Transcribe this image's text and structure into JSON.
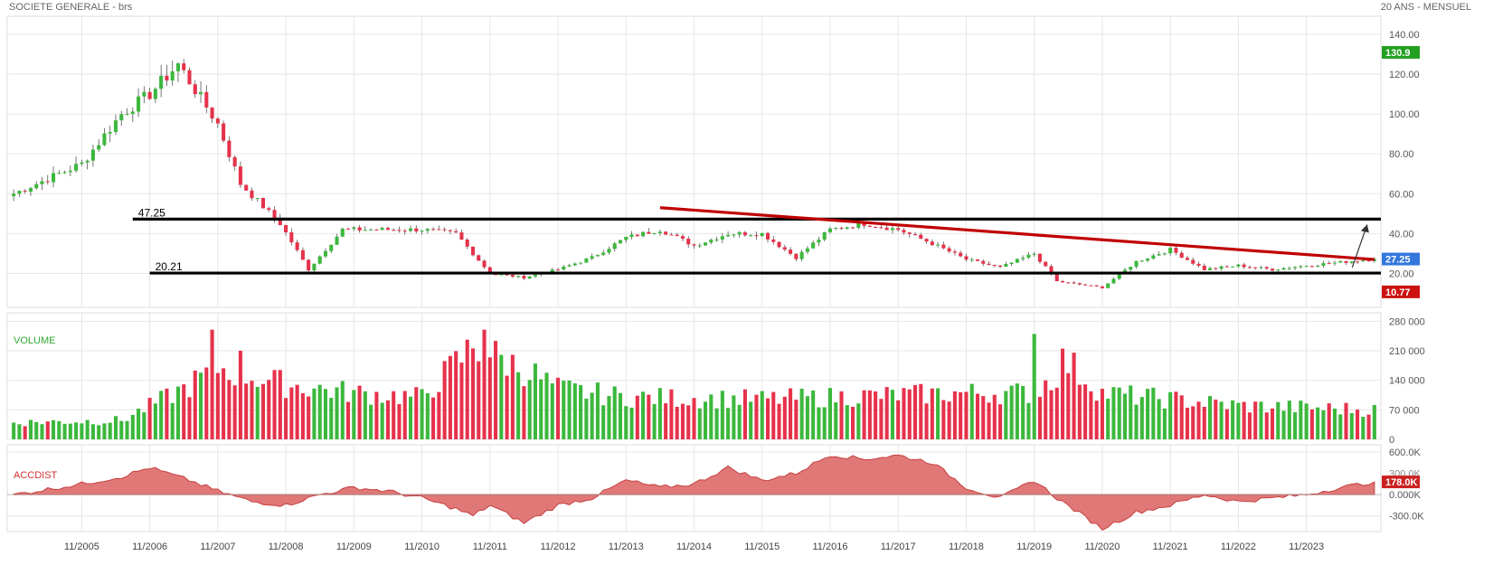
{
  "header": {
    "title": "SOCIETE GENERALE - brs",
    "period": "20 ANS - MENSUEL"
  },
  "colors": {
    "up": "#3cb83c",
    "down": "#e6324b",
    "support": "#000000",
    "trendline": "#c00000",
    "area_fill": "#e07878",
    "last_badge": "#3377dd",
    "high_badge": "#22a022",
    "low_badge": "#cc1111",
    "grid": "#e6e6e6"
  },
  "chart_data": [
    {
      "type": "candlestick",
      "name": "price",
      "x_start": "2004-11",
      "frequency": "monthly",
      "months": 241,
      "close_anchors": [
        [
          "2004-11",
          60
        ],
        [
          "2005-11",
          75
        ],
        [
          "2006-06",
          100
        ],
        [
          "2006-11",
          110
        ],
        [
          "2007-04",
          125
        ],
        [
          "2007-11",
          95
        ],
        [
          "2008-03",
          65
        ],
        [
          "2008-10",
          45
        ],
        [
          "2009-03",
          22
        ],
        [
          "2009-09",
          42
        ],
        [
          "2010-04",
          42
        ],
        [
          "2010-11",
          42
        ],
        [
          "2011-05",
          40
        ],
        [
          "2011-11",
          20
        ],
        [
          "2012-05",
          18
        ],
        [
          "2012-11",
          22
        ],
        [
          "2013-05",
          28
        ],
        [
          "2013-11",
          38
        ],
        [
          "2014-05",
          42
        ],
        [
          "2014-11",
          34
        ],
        [
          "2015-05",
          40
        ],
        [
          "2015-11",
          40
        ],
        [
          "2016-05",
          28
        ],
        [
          "2016-11",
          42
        ],
        [
          "2017-05",
          45
        ],
        [
          "2017-11",
          42
        ],
        [
          "2018-05",
          35
        ],
        [
          "2018-11",
          27
        ],
        [
          "2019-05",
          23
        ],
        [
          "2019-11",
          30
        ],
        [
          "2020-03",
          16
        ],
        [
          "2020-11",
          13
        ],
        [
          "2021-05",
          26
        ],
        [
          "2021-11",
          32
        ],
        [
          "2022-05",
          22
        ],
        [
          "2022-11",
          24
        ],
        [
          "2023-05",
          22
        ],
        [
          "2023-11",
          24
        ],
        [
          "2024-11",
          27.25
        ]
      ],
      "yaxis": {
        "ticks": [
          "140.00",
          "120.00",
          "100.00",
          "80.00",
          "60.00",
          "40.00",
          "20.00"
        ],
        "tick_values": [
          140,
          120,
          100,
          80,
          60,
          40,
          20
        ],
        "range": [
          3,
          149
        ]
      },
      "levels": [
        {
          "label": "47.25",
          "value": 47.25
        },
        {
          "label": "20.21",
          "value": 20.21
        }
      ],
      "trendline": {
        "from": [
          "2016-03",
          47.25
        ],
        "to": [
          "2024-11",
          27
        ],
        "start": [
          "2014-05",
          53
        ]
      },
      "projection_arrow": {
        "from": [
          "2024-09",
          23
        ],
        "to": [
          "2024-11",
          47.25
        ]
      },
      "badges": {
        "high": "130.9",
        "last": "27.25",
        "low": "10.77"
      },
      "badge_values": {
        "high": 130.9,
        "last": 27.25,
        "low": 10.77
      }
    },
    {
      "type": "bar",
      "name": "volume",
      "title": "VOLUME",
      "yaxis": {
        "ticks": [
          "280 000",
          "210 000",
          "140 000",
          "70 000",
          "0"
        ],
        "tick_values": [
          280000,
          210000,
          140000,
          70000,
          0
        ],
        "range": [
          0,
          300000
        ]
      },
      "base_anchors": [
        [
          "2004-11",
          40000
        ],
        [
          "2006-06",
          45000
        ],
        [
          "2007-05",
          120000
        ],
        [
          "2007-11",
          170000
        ],
        [
          "2008-11",
          130000
        ],
        [
          "2009-11",
          110000
        ],
        [
          "2010-11",
          100000
        ],
        [
          "2011-08",
          220000
        ],
        [
          "2012-06",
          160000
        ],
        [
          "2012-11",
          120000
        ],
        [
          "2013-11",
          100000
        ],
        [
          "2015-11",
          95000
        ],
        [
          "2016-11",
          100000
        ],
        [
          "2018-11",
          110000
        ],
        [
          "2019-11",
          110000
        ],
        [
          "2020-05",
          180000
        ],
        [
          "2020-11",
          110000
        ],
        [
          "2022-11",
          80000
        ],
        [
          "2024-11",
          70000
        ]
      ],
      "spikes": [
        [
          "2007-10",
          260000
        ],
        [
          "2011-10",
          260000
        ],
        [
          "2019-11",
          250000
        ],
        [
          "2020-04",
          215000
        ],
        [
          "2008-03",
          210000
        ]
      ]
    },
    {
      "type": "area",
      "name": "accdist",
      "title": "ACCDIST",
      "yaxis": {
        "ticks": [
          "600.0K",
          "0.000K",
          "-300.0K"
        ],
        "tick_values": [
          600000,
          0,
          -300000
        ],
        "range": [
          -520000,
          700000
        ]
      },
      "anchors": [
        [
          "2004-11",
          0
        ],
        [
          "2005-11",
          150000
        ],
        [
          "2006-06",
          250000
        ],
        [
          "2006-11",
          380000
        ],
        [
          "2007-06",
          200000
        ],
        [
          "2007-11",
          50000
        ],
        [
          "2008-05",
          -100000
        ],
        [
          "2008-11",
          -150000
        ],
        [
          "2009-05",
          0
        ],
        [
          "2009-11",
          100000
        ],
        [
          "2010-05",
          50000
        ],
        [
          "2010-11",
          -50000
        ],
        [
          "2011-05",
          -200000
        ],
        [
          "2011-08",
          -300000
        ],
        [
          "2011-11",
          -150000
        ],
        [
          "2012-05",
          -400000
        ],
        [
          "2012-11",
          -150000
        ],
        [
          "2013-05",
          -50000
        ],
        [
          "2013-11",
          200000
        ],
        [
          "2014-05",
          100000
        ],
        [
          "2014-11",
          150000
        ],
        [
          "2015-05",
          380000
        ],
        [
          "2015-11",
          200000
        ],
        [
          "2016-05",
          300000
        ],
        [
          "2016-11",
          560000
        ],
        [
          "2017-05",
          500000
        ],
        [
          "2017-11",
          550000
        ],
        [
          "2018-05",
          450000
        ],
        [
          "2018-11",
          100000
        ],
        [
          "2019-05",
          -50000
        ],
        [
          "2019-11",
          200000
        ],
        [
          "2020-03",
          -50000
        ],
        [
          "2020-11",
          -480000
        ],
        [
          "2021-05",
          -250000
        ],
        [
          "2021-11",
          -150000
        ],
        [
          "2022-05",
          0
        ],
        [
          "2022-11",
          -100000
        ],
        [
          "2023-05",
          -50000
        ],
        [
          "2023-11",
          0
        ],
        [
          "2024-05",
          100000
        ],
        [
          "2024-11",
          178000
        ]
      ],
      "badge": "178.0K",
      "badge_value": 178000,
      "badge_under": "300.0K"
    }
  ],
  "xaxis": {
    "labels": [
      "11/2005",
      "11/2006",
      "11/2007",
      "11/2008",
      "11/2009",
      "11/2010",
      "11/2011",
      "11/2012",
      "11/2013",
      "11/2014",
      "11/2015",
      "11/2016",
      "11/2017",
      "11/2018",
      "11/2019",
      "11/2020",
      "11/2021",
      "11/2022",
      "11/2023"
    ]
  }
}
